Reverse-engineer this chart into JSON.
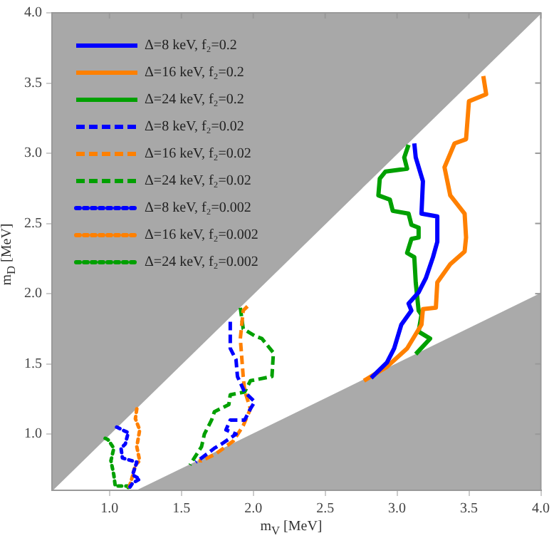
{
  "chart_data": {
    "type": "line",
    "xlabel": "m$_{V}$ [MeV]",
    "ylabel": "m$_{D}$ [MeV]",
    "xlim": [
      0.6,
      4.0
    ],
    "ylim": [
      0.6,
      4.0
    ],
    "xticks": [
      {
        "value": 1,
        "label": "1.0"
      },
      1.5,
      {
        "value": 2,
        "label": "2.0"
      },
      2.5,
      {
        "value": 3,
        "label": "3.0"
      },
      3.5,
      {
        "value": 4,
        "label": "4.0"
      }
    ],
    "yticks": [
      {
        "value": 1,
        "label": "1.0"
      },
      1.5,
      {
        "value": 2,
        "label": "2.0"
      },
      2.5,
      {
        "value": 3,
        "label": "3.0"
      },
      3.5,
      {
        "value": 4,
        "label": "4.0"
      }
    ],
    "grid": false,
    "legend": "top left",
    "marker": "none",
    "series": [
      {
        "type": "area",
        "color": "#a8a8a8",
        "x": [
          0.6,
          0.6,
          2.3,
          4.0
        ],
        "values": [
          4.0,
          0.6,
          2.3,
          4.0
        ]
      },
      {
        "type": "area",
        "color": "#aaaaaa",
        "x": [
          1.2,
          2.6,
          4.0
        ],
        "values": [
          0.6,
          1.3,
          2.0
        ]
      },
      {
        "name": "Δ=8 keV, f₂=0.2",
        "color": "#0000ff",
        "line_style": "solid",
        "x": [
          3.12,
          3.13,
          3.18,
          3.17,
          3.28,
          3.28,
          3.25,
          3.2,
          3.15,
          3.08,
          3.1,
          3.03,
          2.98,
          2.93,
          2.82
        ],
        "values": [
          3.07,
          2.97,
          2.8,
          2.57,
          2.55,
          2.37,
          2.26,
          2.11,
          2.01,
          1.93,
          1.88,
          1.78,
          1.61,
          1.51,
          1.4
        ]
      },
      {
        "name": "Δ=16 keV, f₂=0.2",
        "color": "#ff8000",
        "line_style": "solid",
        "x": [
          3.6,
          3.62,
          3.5,
          3.48,
          3.4,
          3.33,
          3.37,
          3.47,
          3.48,
          3.47,
          3.37,
          3.28,
          3.27,
          3.18,
          3.17,
          3.07,
          2.93,
          2.77
        ],
        "values": [
          3.55,
          3.42,
          3.37,
          3.1,
          3.07,
          2.9,
          2.7,
          2.57,
          2.4,
          2.3,
          2.21,
          2.08,
          1.9,
          1.89,
          1.78,
          1.61,
          1.48,
          1.38
        ]
      },
      {
        "name": "Δ=24 keV, f₂=0.2",
        "color": "#00a000",
        "line_style": "solid",
        "x": [
          3.08,
          3.05,
          3.07,
          2.92,
          2.88,
          2.87,
          2.95,
          2.97,
          3.08,
          3.1,
          3.15,
          3.15,
          3.1,
          3.07,
          3.12,
          3.13,
          3.15,
          3.17,
          3.15,
          3.23,
          3.13
        ],
        "values": [
          3.06,
          2.97,
          2.89,
          2.87,
          2.82,
          2.7,
          2.67,
          2.59,
          2.57,
          2.49,
          2.47,
          2.4,
          2.39,
          2.29,
          2.26,
          2.08,
          1.88,
          1.85,
          1.73,
          1.68,
          1.57
        ]
      },
      {
        "name": "Δ=8 keV, f₂=0.02",
        "color": "#0000ff",
        "line_style": "dashed",
        "x": [
          1.84,
          1.84,
          1.88,
          1.89,
          1.94,
          2.01,
          1.98,
          1.94,
          1.84,
          1.81,
          1.88,
          1.78,
          1.73,
          1.68,
          1.64,
          1.6
        ],
        "values": [
          1.8,
          1.61,
          1.53,
          1.41,
          1.3,
          1.23,
          1.18,
          1.1,
          1.1,
          1.03,
          1.0,
          0.93,
          0.9,
          0.86,
          0.83,
          0.8
        ]
      },
      {
        "name": "Δ=16 keV, f₂=0.02",
        "color": "#ff8000",
        "line_style": "dashed",
        "x": [
          1.96,
          1.93,
          1.91,
          1.93,
          1.94,
          1.98,
          1.93,
          1.86,
          1.74,
          1.64,
          1.62
        ],
        "values": [
          1.91,
          1.88,
          1.68,
          1.41,
          1.31,
          1.18,
          1.06,
          0.95,
          0.86,
          0.81,
          0.81
        ]
      },
      {
        "name": "Δ=24 keV, f₂=0.02",
        "color": "#00a000",
        "line_style": "dashed",
        "x": [
          1.91,
          1.93,
          2.01,
          2.06,
          2.14,
          2.13,
          1.98,
          1.94,
          1.84,
          1.83,
          1.73,
          1.71,
          1.66,
          1.64,
          1.59,
          1.56
        ],
        "values": [
          1.9,
          1.75,
          1.7,
          1.68,
          1.58,
          1.41,
          1.38,
          1.3,
          1.28,
          1.21,
          1.16,
          1.1,
          1.0,
          0.91,
          0.83,
          0.78
        ]
      },
      {
        "name": "Δ=8 keV, f₂=0.002",
        "color": "#0000ff",
        "line_style": "dotted",
        "x": [
          1.05,
          1.09,
          1.13,
          1.11,
          1.08,
          1.09,
          1.19,
          1.16,
          1.21,
          1.16,
          1.14
        ],
        "values": [
          1.05,
          1.03,
          1.01,
          0.93,
          0.9,
          0.83,
          0.8,
          0.71,
          0.68,
          0.65,
          0.62
        ]
      },
      {
        "name": "Δ=16 keV, f₂=0.002",
        "color": "#ff8000",
        "line_style": "dotted",
        "x": [
          1.19,
          1.18,
          1.21,
          1.19,
          1.21,
          1.18,
          1.16,
          1.13
        ],
        "values": [
          1.18,
          1.11,
          1.03,
          0.91,
          0.81,
          0.78,
          0.7,
          0.6
        ]
      },
      {
        "name": "Δ=24 keV, f₂=0.002",
        "color": "#00a000",
        "line_style": "dotted",
        "x": [
          0.97,
          0.99,
          1.03,
          1.01,
          1.03,
          1.04,
          1.13,
          1.13
        ],
        "values": [
          0.97,
          0.96,
          0.9,
          0.81,
          0.71,
          0.63,
          0.63,
          0.6
        ]
      }
    ]
  }
}
